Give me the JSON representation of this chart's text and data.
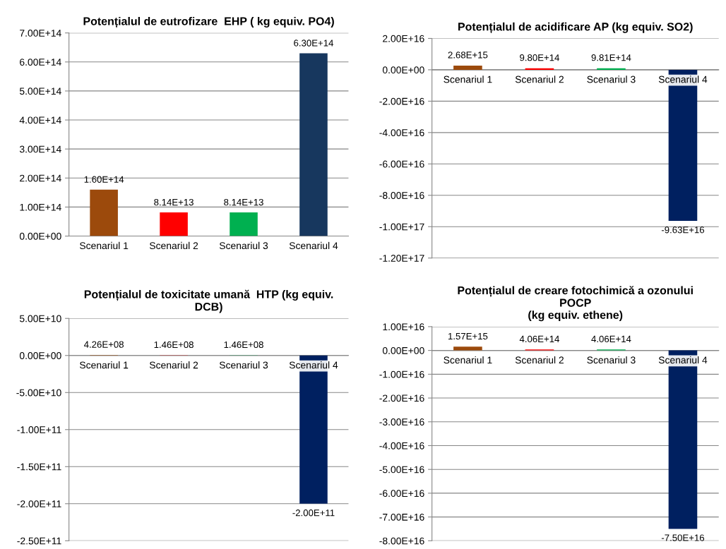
{
  "chart_data": [
    {
      "type": "bar",
      "title": "Potențialul de eutrofizare  EHP ( kg equiv. PO4)",
      "categories": [
        "Scenariul 1",
        "Scenariul 2",
        "Scenariul 3",
        "Scenariul 4"
      ],
      "values": [
        160000000000000.0,
        81400000000000.0,
        81400000000000.0,
        630000000000000.0
      ],
      "colors": [
        "#9c4a0c",
        "#ff0000",
        "#00b050",
        "#17375e"
      ],
      "value_labels": [
        "1.60E+14",
        "8.14E+13",
        "8.14E+13",
        "6.30E+14"
      ],
      "ylim": [
        0,
        700000000000000.0
      ],
      "yticks": [
        {
          "value": 0,
          "label": "0.00E+00"
        },
        {
          "value": 100000000000000.0,
          "label": "1.00E+14"
        },
        {
          "value": 200000000000000.0,
          "label": "2.00E+14"
        },
        {
          "value": 300000000000000.0,
          "label": "3.00E+14"
        },
        {
          "value": 400000000000000.0,
          "label": "4.00E+14"
        },
        {
          "value": 500000000000000.0,
          "label": "5.00E+14"
        },
        {
          "value": 600000000000000.0,
          "label": "6.00E+14"
        },
        {
          "value": 700000000000000.0,
          "label": "7.00E+14"
        }
      ],
      "grid": "y",
      "legend": false
    },
    {
      "type": "bar",
      "title": "Potențialul de acidificare AP (kg equiv. SO2)",
      "categories": [
        "Scenariul 1",
        "Scenariul 2",
        "Scenariul 3",
        "Scenariul 4"
      ],
      "values": [
        2680000000000000.0,
        980000000000000.0,
        981000000000000.0,
        -9.63e+16
      ],
      "colors": [
        "#9c4a0c",
        "#ff0000",
        "#00b050",
        "#002060"
      ],
      "value_labels": [
        "2.68E+15",
        "9.80E+14",
        "9.81E+14",
        "-9.63E+16"
      ],
      "ylim": [
        -1.2e+17,
        2e+16
      ],
      "yticks": [
        {
          "value": -1.2e+17,
          "label": "-1.20E+17"
        },
        {
          "value": -1e+17,
          "label": "-1.00E+17"
        },
        {
          "value": -8e+16,
          "label": "-8.00E+16"
        },
        {
          "value": -6e+16,
          "label": "-6.00E+16"
        },
        {
          "value": -4e+16,
          "label": "-4.00E+16"
        },
        {
          "value": -2e+16,
          "label": "-2.00E+16"
        },
        {
          "value": 0,
          "label": "0.00E+00"
        },
        {
          "value": 2e+16,
          "label": "2.00E+16"
        }
      ],
      "grid": "y",
      "legend": false
    },
    {
      "type": "bar",
      "title": "Potențialul de toxicitate umană  HTP (kg equiv.\nDCB)",
      "categories": [
        "Scenariul 1",
        "Scenariul 2",
        "Scenariul 3",
        "Scenariul 4"
      ],
      "values": [
        426000000.0,
        146000000.0,
        146000000.0,
        -200000000000.0
      ],
      "colors": [
        "#9c4a0c",
        "#ff0000",
        "#00b050",
        "#002060"
      ],
      "value_labels": [
        "4.26E+08",
        "1.46E+08",
        "1.46E+08",
        "-2.00E+11"
      ],
      "ylim": [
        -250000000000.0,
        50000000000.0
      ],
      "yticks": [
        {
          "value": -250000000000.0,
          "label": "-2.50E+11"
        },
        {
          "value": -200000000000.0,
          "label": "-2.00E+11"
        },
        {
          "value": -150000000000.0,
          "label": "-1.50E+11"
        },
        {
          "value": -100000000000.0,
          "label": "-1.00E+11"
        },
        {
          "value": -50000000000.0,
          "label": "-5.00E+10"
        },
        {
          "value": 0,
          "label": "0.00E+00"
        },
        {
          "value": 50000000000.0,
          "label": "5.00E+10"
        }
      ],
      "grid": "y",
      "legend": false
    },
    {
      "type": "bar",
      "title": "Potențialul de creare fotochimică a ozonului\nPOCP\n(kg equiv. ethene)",
      "categories": [
        "Scenariul 1",
        "Scenariul 2",
        "Scenariul 3",
        "Scenariul 4"
      ],
      "values": [
        1570000000000000.0,
        406000000000000.0,
        406000000000000.0,
        -7.5e+16
      ],
      "colors": [
        "#9c4a0c",
        "#ff0000",
        "#00b050",
        "#002060"
      ],
      "value_labels": [
        "1.57E+15",
        "4.06E+14",
        "4.06E+14",
        "-7.50E+16"
      ],
      "ylim": [
        -8e+16,
        1e+16
      ],
      "yticks": [
        {
          "value": -8e+16,
          "label": "-8.00E+16"
        },
        {
          "value": -7e+16,
          "label": "-7.00E+16"
        },
        {
          "value": -6e+16,
          "label": "-6.00E+16"
        },
        {
          "value": -5e+16,
          "label": "-5.00E+16"
        },
        {
          "value": -4e+16,
          "label": "-4.00E+16"
        },
        {
          "value": -3e+16,
          "label": "-3.00E+16"
        },
        {
          "value": -2e+16,
          "label": "-2.00E+16"
        },
        {
          "value": -1e+16,
          "label": "-1.00E+16"
        },
        {
          "value": 0,
          "label": "0.00E+00"
        },
        {
          "value": 1e+16,
          "label": "1.00E+16"
        }
      ],
      "grid": "y",
      "legend": false
    }
  ]
}
